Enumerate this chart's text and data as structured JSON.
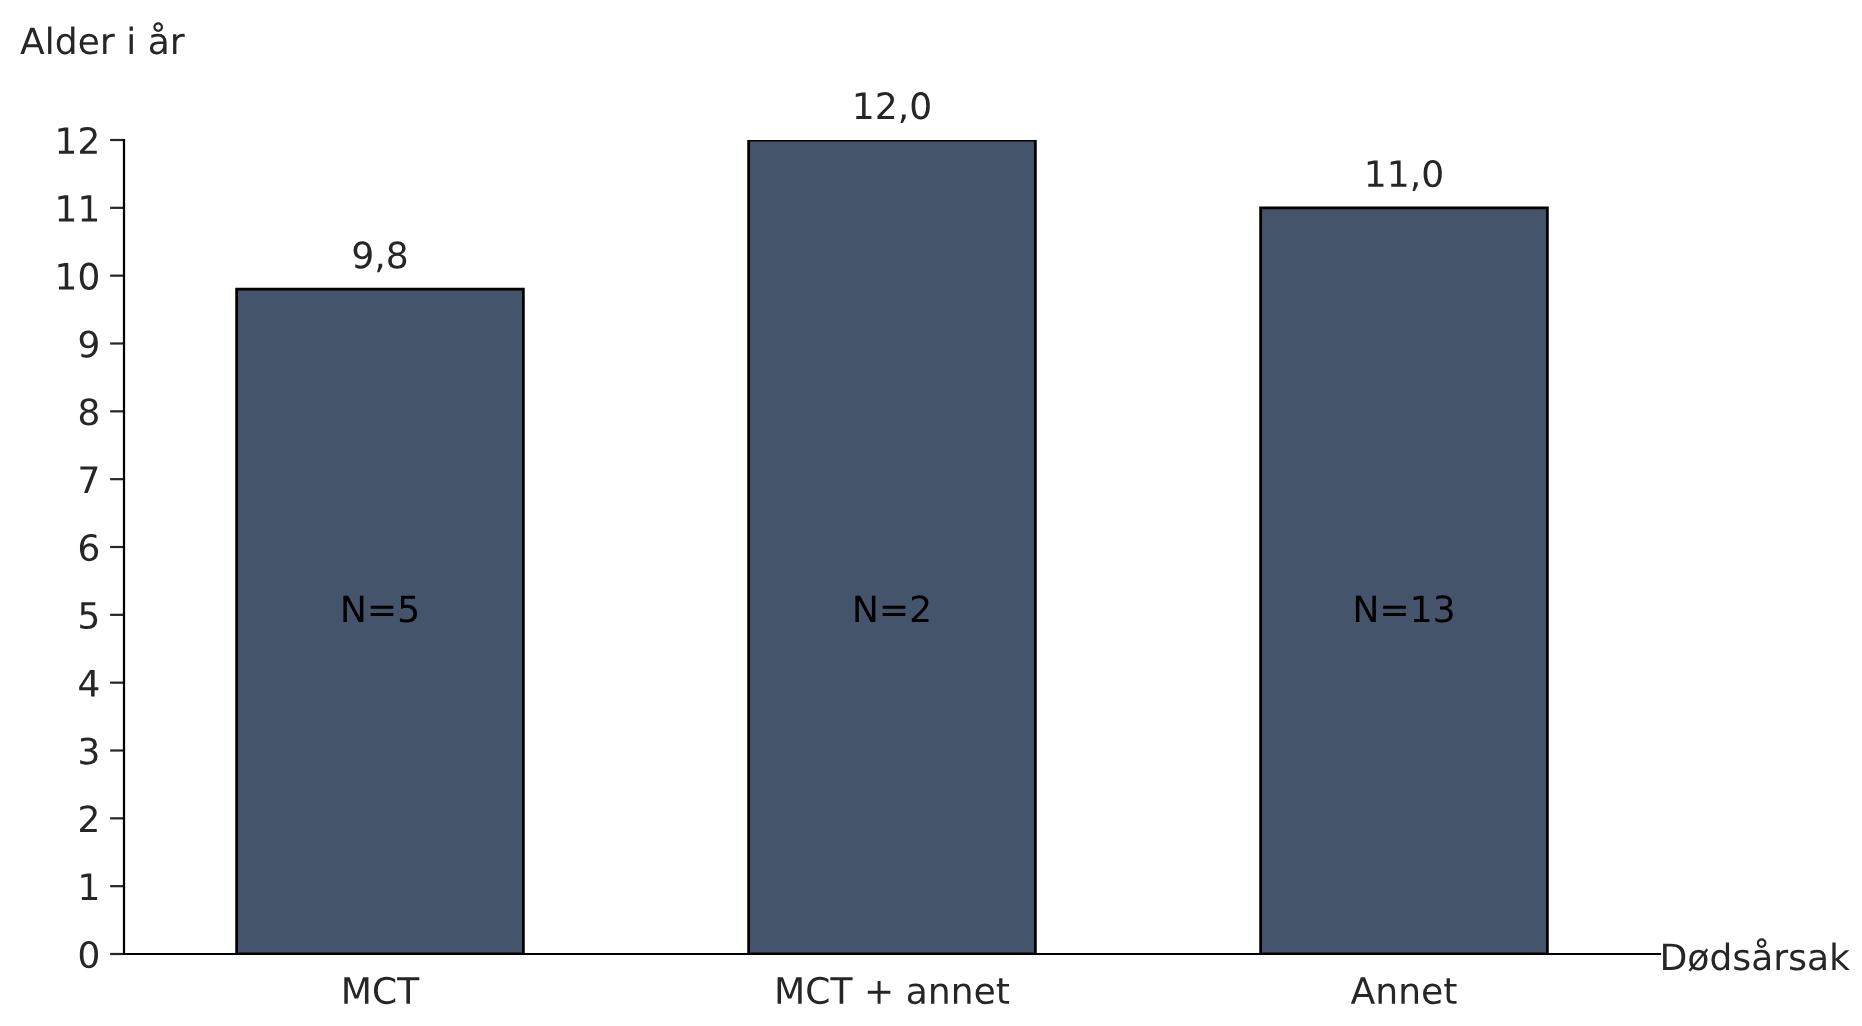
{
  "chart_data": {
    "type": "bar",
    "ylabel": "Alder i år",
    "xlabel": "Dødsårsak",
    "categories": [
      "MCT",
      "MCT + annet",
      "Annet"
    ],
    "values": [
      9.8,
      12.0,
      11.0
    ],
    "value_labels": [
      "9,8",
      "12,0",
      "11,0"
    ],
    "color": "#44546a",
    "ylim": [
      0,
      12
    ],
    "yticks": [
      0,
      1,
      2,
      3,
      4,
      5,
      6,
      7,
      8,
      9,
      10,
      11,
      12
    ],
    "grid": false,
    "legend": false,
    "annotations": [
      "N=5",
      "N=2",
      "N=13"
    ]
  }
}
